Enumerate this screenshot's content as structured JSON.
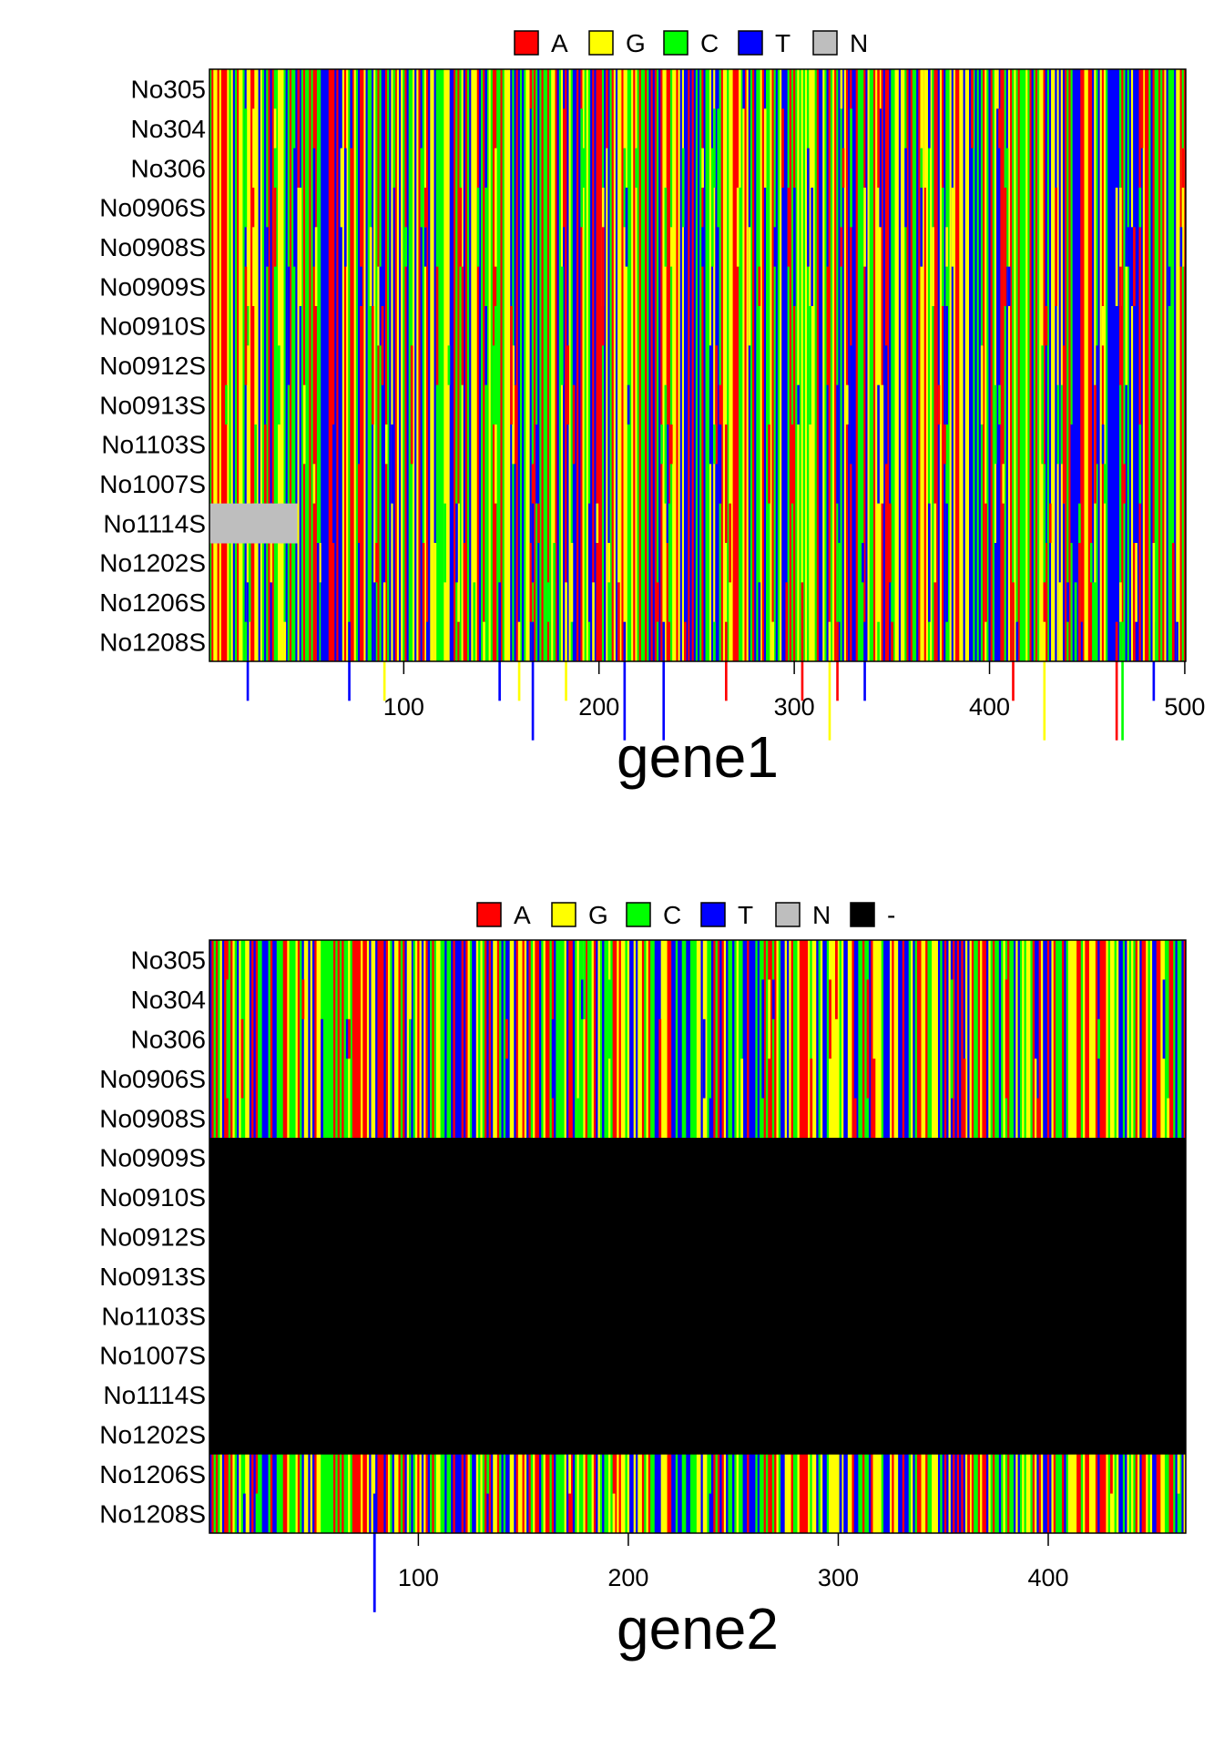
{
  "chart_data": [
    {
      "type": "heatmap",
      "subtype": "sequence-alignment",
      "xlabel": "gene1",
      "x_range": [
        1,
        500
      ],
      "x_ticks": [
        100,
        200,
        300,
        400,
        500
      ],
      "legend": {
        "placement": "top",
        "entries": [
          {
            "label": "A",
            "color": "#ff0000"
          },
          {
            "label": "G",
            "color": "#ffff00"
          },
          {
            "label": "C",
            "color": "#00ff00"
          },
          {
            "label": "T",
            "color": "#0000ff"
          },
          {
            "label": "N",
            "color": "#bebebe"
          }
        ]
      },
      "rows": [
        "No305",
        "No304",
        "No306",
        "No0906S",
        "No0908S",
        "No0909S",
        "No0910S",
        "No0912S",
        "No0913S",
        "No1103S",
        "No1007S",
        "No1114S",
        "No1202S",
        "No1206S",
        "No1208S"
      ],
      "regions": [
        {
          "row": "No1114S",
          "x_start": 1,
          "x_end": 45,
          "base": "N"
        }
      ]
    },
    {
      "type": "heatmap",
      "subtype": "sequence-alignment",
      "xlabel": "gene2",
      "x_range": [
        1,
        465
      ],
      "x_ticks": [
        100,
        200,
        300,
        400
      ],
      "legend": {
        "placement": "top",
        "entries": [
          {
            "label": "A",
            "color": "#ff0000"
          },
          {
            "label": "G",
            "color": "#ffff00"
          },
          {
            "label": "C",
            "color": "#00ff00"
          },
          {
            "label": "T",
            "color": "#0000ff"
          },
          {
            "label": "N",
            "color": "#bebebe"
          },
          {
            "label": "-",
            "color": "#000000"
          }
        ]
      },
      "rows": [
        "No305",
        "No304",
        "No306",
        "No0906S",
        "No0908S",
        "No0909S",
        "No0910S",
        "No0912S",
        "No0913S",
        "No1103S",
        "No1007S",
        "No1114S",
        "No1202S",
        "No1206S",
        "No1208S"
      ],
      "regions": [
        {
          "row": "No0909S",
          "x_start": 1,
          "x_end": 465,
          "base": "-"
        },
        {
          "row": "No0910S",
          "x_start": 1,
          "x_end": 465,
          "base": "-"
        },
        {
          "row": "No0912S",
          "x_start": 1,
          "x_end": 465,
          "base": "-"
        },
        {
          "row": "No0913S",
          "x_start": 1,
          "x_end": 465,
          "base": "-"
        },
        {
          "row": "No1103S",
          "x_start": 1,
          "x_end": 465,
          "base": "-"
        },
        {
          "row": "No1007S",
          "x_start": 1,
          "x_end": 465,
          "base": "-"
        },
        {
          "row": "No1114S",
          "x_start": 1,
          "x_end": 465,
          "base": "-"
        },
        {
          "row": "No1202S",
          "x_start": 1,
          "x_end": 465,
          "base": "-"
        }
      ]
    }
  ]
}
